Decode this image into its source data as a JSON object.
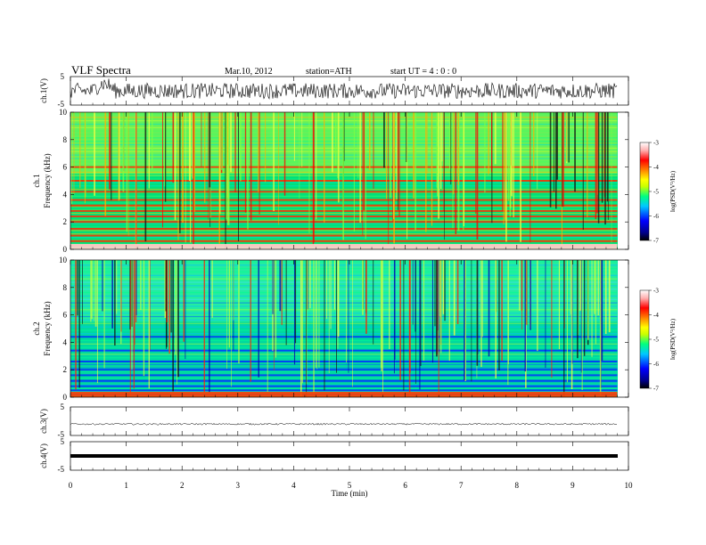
{
  "header": {
    "title": "VLF  Spectra",
    "date": "Mar.10, 2012",
    "station": "station=ATH",
    "start": "start  UT  =   4  : 0  : 0"
  },
  "x_axis": {
    "label": "Time  (min)",
    "range": [
      0,
      10
    ],
    "data_end": 9.8,
    "ticks": [
      "0",
      "1",
      "2",
      "3",
      "4",
      "5",
      "6",
      "7",
      "8",
      "9",
      "10"
    ]
  },
  "panels": {
    "ch1": {
      "ylabel": "ch.1(V)",
      "ticks": [
        "5",
        "-5"
      ],
      "range": [
        -5,
        5
      ]
    },
    "spec1": {
      "ylabel_ch": "ch.1",
      "ylabel_freq": "Frequency  (kHz)",
      "ticks": [
        "10",
        "8",
        "6",
        "4",
        "2",
        "0"
      ],
      "range": [
        0,
        10
      ]
    },
    "spec2": {
      "ylabel_ch": "ch.2",
      "ylabel_freq": "Frequency  (kHz)",
      "ticks": [
        "10",
        "8",
        "6",
        "4",
        "2",
        "0"
      ],
      "range": [
        0,
        10
      ]
    },
    "ch3": {
      "ylabel": "ch.3(V)",
      "ticks": [
        "5",
        "-5"
      ],
      "range": [
        -5,
        5
      ]
    },
    "ch4": {
      "ylabel": "ch.4(V)",
      "ticks": [
        "5",
        "-5"
      ],
      "range": [
        -5,
        5
      ]
    }
  },
  "colorbar": {
    "label": "log(PSD(V²/Hz)",
    "ticks": [
      "-3",
      "-4",
      "-5",
      "-6",
      "-7"
    ],
    "range": [
      -7,
      -3
    ],
    "colors": [
      "#000000",
      "#00008b",
      "#0000ff",
      "#00c8ff",
      "#00ff80",
      "#c8ff00",
      "#ffff00",
      "#ff8000",
      "#ff0000",
      "#ffb0b0",
      "#ffffff"
    ]
  },
  "chart_data": [
    {
      "type": "line",
      "title": "VLF  Spectra",
      "series": [
        {
          "name": "ch.1(V)",
          "description_level": 0
        }
      ],
      "x": [
        0,
        9.8
      ],
      "xlim": [
        0,
        10
      ],
      "ylim": [
        -5,
        5
      ],
      "xlabel": "Time  (min)",
      "ylabel": "ch.1(V)"
    },
    {
      "type": "heatmap",
      "ylabel": "Frequency  (kHz)",
      "xlim": [
        0,
        10
      ],
      "ylim": [
        0,
        10
      ],
      "color_range": [
        -7,
        -3
      ],
      "strong_bands_khz": [
        0.3,
        0.6,
        1.0,
        1.5,
        2.0,
        2.4,
        2.8,
        3.2,
        3.6,
        4.2,
        5.0,
        6.0
      ]
    },
    {
      "type": "heatmap",
      "ylabel": "Frequency  (kHz)",
      "xlim": [
        0,
        10
      ],
      "ylim": [
        0,
        10
      ],
      "color_range": [
        -7,
        -3
      ],
      "strong_bands_khz": [
        0.2,
        0.5,
        0.8,
        1.2,
        1.6,
        2.0,
        2.6,
        3.4,
        4.4
      ]
    },
    {
      "type": "line",
      "series": [
        {
          "name": "ch.3(V)",
          "level": -1
        }
      ],
      "xlim": [
        0,
        10
      ],
      "ylim": [
        -5,
        5
      ],
      "ylabel": "ch.3(V)"
    },
    {
      "type": "line",
      "series": [
        {
          "name": "ch.4(V)",
          "level": 0
        }
      ],
      "xlim": [
        0,
        10
      ],
      "ylim": [
        -5,
        5
      ],
      "ylabel": "ch.4(V)"
    }
  ]
}
